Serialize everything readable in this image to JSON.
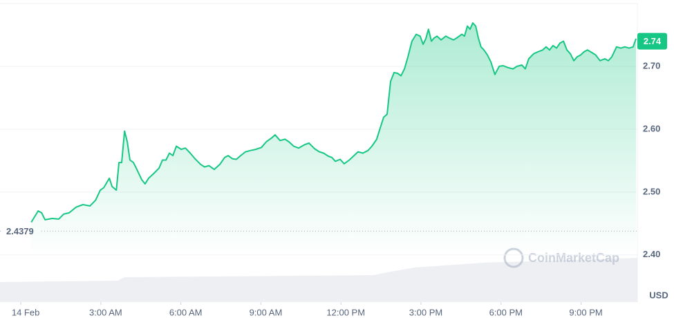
{
  "chart_data": {
    "type": "line",
    "series": [
      {
        "color": "#16c784",
        "x": [
          0.39,
          0.65,
          0.78,
          0.91,
          1.17,
          1.42,
          1.61,
          1.81,
          2.07,
          2.33,
          2.59,
          2.8,
          2.98,
          3.11,
          3.32,
          3.42,
          3.58,
          3.68,
          3.78,
          3.89,
          3.99,
          4.09,
          4.22,
          4.35,
          4.53,
          4.66,
          4.79,
          4.97,
          5.18,
          5.31,
          5.44,
          5.57,
          5.7,
          5.83,
          6.01,
          6.17,
          6.35,
          6.53,
          6.74,
          6.89,
          7.05,
          7.25,
          7.46,
          7.64,
          7.77,
          7.93,
          8.08,
          8.24,
          8.42,
          8.6,
          8.81,
          9.02,
          9.2,
          9.4,
          9.53,
          9.72,
          9.9,
          10.05,
          10.23,
          10.41,
          10.62,
          10.8,
          11.01,
          11.19,
          11.35,
          11.53,
          11.66,
          11.79,
          11.97,
          12.12,
          12.31,
          12.49,
          12.64,
          12.82,
          13.01,
          13.16,
          13.34,
          13.47,
          13.6,
          13.73,
          13.86,
          13.99,
          14.12,
          14.25,
          14.38,
          14.51,
          14.66,
          14.82,
          14.97,
          15.08,
          15.18,
          15.28,
          15.39,
          15.49,
          15.6,
          15.75,
          15.93,
          16.06,
          16.22,
          16.37,
          16.53,
          16.63,
          16.74,
          16.84,
          16.94,
          17.05,
          17.15,
          17.25,
          17.36,
          17.49,
          17.62,
          17.77,
          17.93,
          18.08,
          18.26,
          18.45,
          18.6,
          18.78,
          18.91,
          19.04,
          19.22,
          19.38,
          19.56,
          19.69,
          19.82,
          19.95,
          20.08,
          20.21,
          20.34,
          20.47,
          20.6,
          20.73,
          20.85,
          20.98,
          21.11,
          21.24,
          21.4,
          21.55,
          21.71,
          21.89,
          22.02,
          22.15,
          22.33,
          22.49,
          22.64,
          22.8,
          22.95,
          23.06
        ],
        "values": [
          2.452,
          2.47,
          2.467,
          2.456,
          2.458,
          2.457,
          2.465,
          2.467,
          2.476,
          2.48,
          2.478,
          2.487,
          2.503,
          2.507,
          2.522,
          2.509,
          2.503,
          2.547,
          2.547,
          2.597,
          2.58,
          2.551,
          2.547,
          2.536,
          2.52,
          2.513,
          2.522,
          2.529,
          2.538,
          2.551,
          2.551,
          2.562,
          2.558,
          2.573,
          2.568,
          2.57,
          2.562,
          2.553,
          2.544,
          2.54,
          2.542,
          2.536,
          2.544,
          2.555,
          2.558,
          2.553,
          2.552,
          2.558,
          2.564,
          2.566,
          2.568,
          2.571,
          2.58,
          2.586,
          2.591,
          2.582,
          2.584,
          2.58,
          2.573,
          2.57,
          2.575,
          2.578,
          2.569,
          2.564,
          2.562,
          2.557,
          2.555,
          2.549,
          2.552,
          2.545,
          2.551,
          2.558,
          2.564,
          2.562,
          2.566,
          2.573,
          2.584,
          2.602,
          2.619,
          2.624,
          2.676,
          2.69,
          2.689,
          2.685,
          2.696,
          2.715,
          2.74,
          2.751,
          2.748,
          2.735,
          2.744,
          2.759,
          2.74,
          2.745,
          2.748,
          2.742,
          2.748,
          2.745,
          2.742,
          2.746,
          2.751,
          2.748,
          2.764,
          2.759,
          2.769,
          2.764,
          2.745,
          2.731,
          2.726,
          2.718,
          2.707,
          2.687,
          2.7,
          2.701,
          2.698,
          2.696,
          2.7,
          2.702,
          2.696,
          2.712,
          2.72,
          2.723,
          2.726,
          2.731,
          2.726,
          2.733,
          2.729,
          2.737,
          2.74,
          2.726,
          2.72,
          2.709,
          2.715,
          2.718,
          2.723,
          2.726,
          2.722,
          2.718,
          2.709,
          2.712,
          2.709,
          2.715,
          2.731,
          2.729,
          2.731,
          2.729,
          2.731,
          2.744
        ]
      }
    ],
    "baseline": 2.4379,
    "current_price": 2.74,
    "xlim": [
      -0.78,
      23.11
    ],
    "xticks": [
      {
        "value": 0,
        "label": "14 Feb"
      },
      {
        "value": 3,
        "label": "3:00 AM"
      },
      {
        "value": 6,
        "label": "6:00 AM"
      },
      {
        "value": 9,
        "label": "9:00 AM"
      },
      {
        "value": 12,
        "label": "12:00 PM"
      },
      {
        "value": 15,
        "label": "3:00 PM"
      },
      {
        "value": 18,
        "label": "6:00 PM"
      },
      {
        "value": 21,
        "label": "9:00 PM"
      }
    ],
    "ylim": [
      2.325,
      2.8
    ],
    "yticks": [
      {
        "value": 2.4,
        "label": "2.40"
      },
      {
        "value": 2.5,
        "label": "2.50"
      },
      {
        "value": 2.6,
        "label": "2.60"
      },
      {
        "value": 2.7,
        "label": "2.70"
      }
    ],
    "grid": true,
    "currency": "USD",
    "watermark": "CoinMarketCap"
  }
}
